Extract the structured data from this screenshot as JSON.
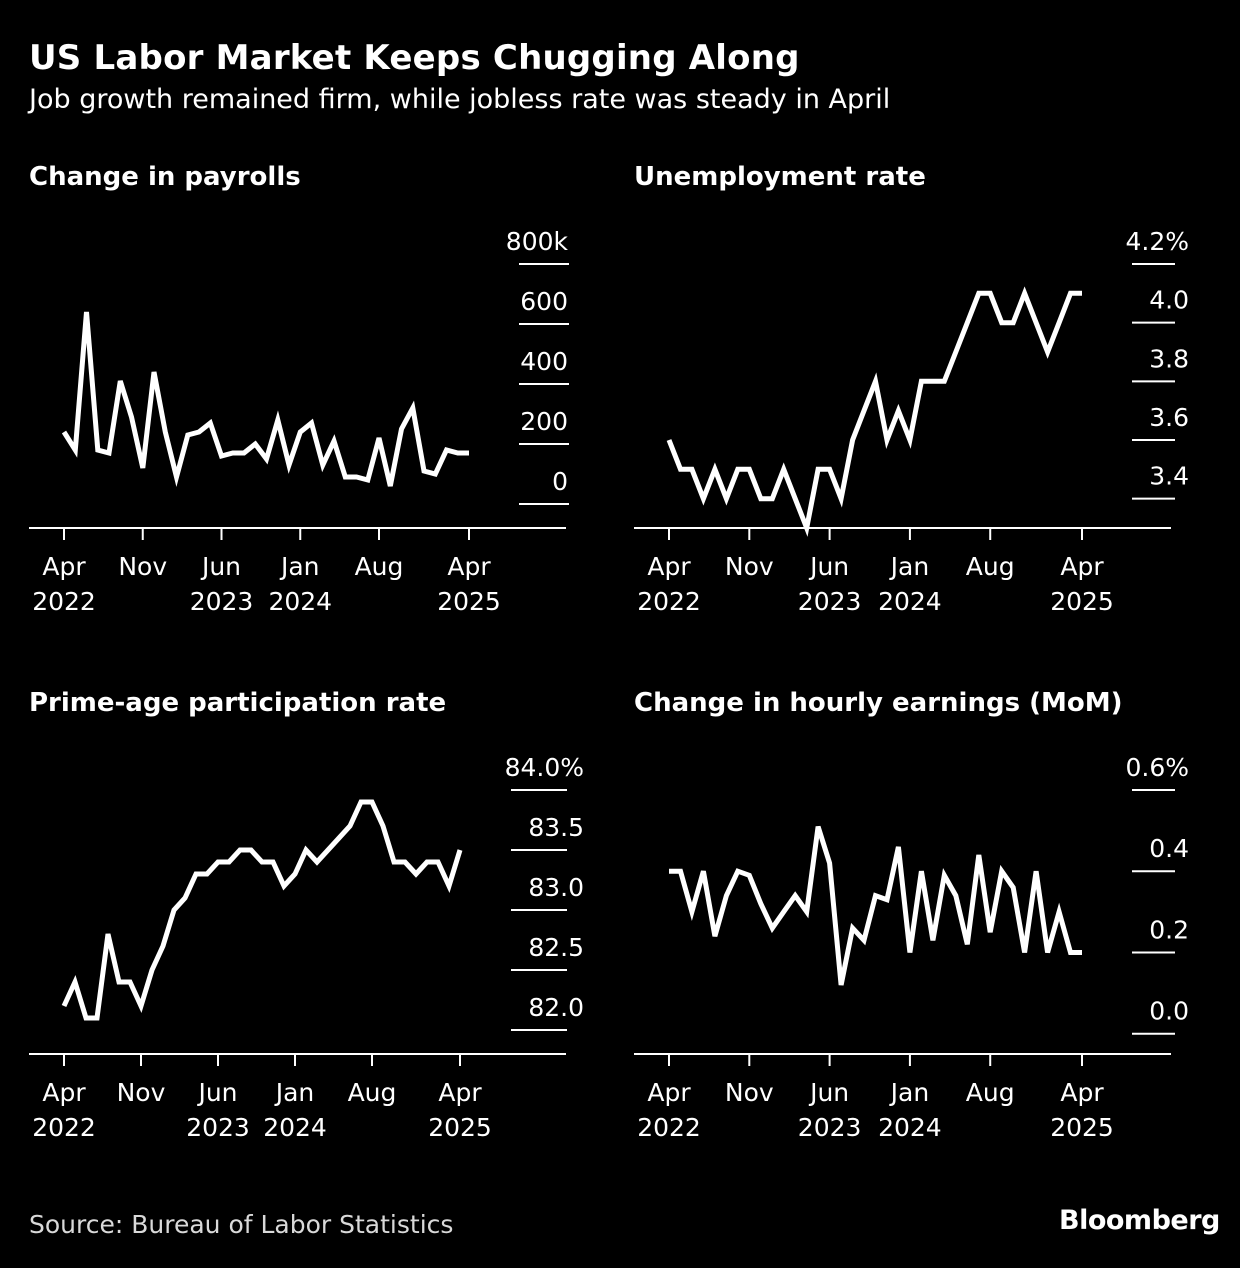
{
  "header": {
    "title": "US Labor Market Keeps Chugging Along",
    "subtitle": "Job growth remained firm, while jobless rate was steady in April"
  },
  "footer": {
    "source": "Source: Bureau of Labor Statistics",
    "brand": "Bloomberg"
  },
  "colors": {
    "background": "#000000",
    "line": "#ffffff",
    "grid": "#ffffff"
  },
  "chart_data": [
    {
      "type": "line",
      "title": "Change in payrolls",
      "x": [
        "2022-04",
        "2022-05",
        "2022-06",
        "2022-07",
        "2022-08",
        "2022-09",
        "2022-10",
        "2022-11",
        "2022-12",
        "2023-01",
        "2023-02",
        "2023-03",
        "2023-04",
        "2023-05",
        "2023-06",
        "2023-07",
        "2023-08",
        "2023-09",
        "2023-10",
        "2023-11",
        "2023-12",
        "2024-01",
        "2024-02",
        "2024-03",
        "2024-04",
        "2024-05",
        "2024-06",
        "2024-07",
        "2024-08",
        "2024-09",
        "2024-10",
        "2024-11",
        "2024-12",
        "2025-01",
        "2025-02",
        "2025-03",
        "2025-04"
      ],
      "values": [
        240,
        180,
        640,
        180,
        170,
        410,
        290,
        120,
        440,
        240,
        90,
        230,
        240,
        270,
        160,
        170,
        170,
        200,
        150,
        280,
        130,
        240,
        270,
        130,
        210,
        90,
        90,
        80,
        220,
        60,
        250,
        320,
        110,
        100,
        180,
        170,
        170
      ],
      "ylim": [
        -80,
        800
      ],
      "yticks": [
        800,
        600,
        400,
        200,
        0
      ],
      "ytick_labels": [
        "800k",
        "600",
        "400",
        "200",
        "0"
      ],
      "xtick_positions": [
        "2022-04",
        "2022-11",
        "2023-06",
        "2024-01",
        "2024-08",
        "2025-04"
      ],
      "xtick_labels": [
        [
          "Apr",
          "2022"
        ],
        [
          "Nov",
          ""
        ],
        [
          "Jun",
          "2023"
        ],
        [
          "Jan",
          "2024"
        ],
        [
          "Aug",
          ""
        ],
        [
          "Apr",
          "2025"
        ]
      ],
      "xlabel": "",
      "ylabel": ""
    },
    {
      "type": "line",
      "title": "Unemployment rate",
      "x": [
        "2022-04",
        "2022-05",
        "2022-06",
        "2022-07",
        "2022-08",
        "2022-09",
        "2022-10",
        "2022-11",
        "2022-12",
        "2023-01",
        "2023-02",
        "2023-03",
        "2023-04",
        "2023-05",
        "2023-06",
        "2023-07",
        "2023-08",
        "2023-09",
        "2023-10",
        "2023-11",
        "2023-12",
        "2024-01",
        "2024-02",
        "2024-03",
        "2024-04",
        "2024-05",
        "2024-06",
        "2024-07",
        "2024-08",
        "2024-09",
        "2024-10",
        "2024-11",
        "2024-12",
        "2025-01",
        "2025-02",
        "2025-03",
        "2025-04"
      ],
      "values": [
        3.6,
        3.5,
        3.5,
        3.4,
        3.5,
        3.4,
        3.5,
        3.5,
        3.4,
        3.4,
        3.5,
        3.4,
        3.3,
        3.5,
        3.5,
        3.4,
        3.6,
        3.7,
        3.8,
        3.6,
        3.7,
        3.6,
        3.8,
        3.8,
        3.8,
        3.9,
        4.0,
        4.1,
        4.1,
        4.0,
        4.0,
        4.1,
        4.0,
        3.9,
        4.0,
        4.1,
        4.1
      ],
      "ylim": [
        3.3,
        4.2
      ],
      "yticks": [
        4.2,
        4.0,
        3.8,
        3.6,
        3.4
      ],
      "ytick_labels": [
        "4.2%",
        "4.0",
        "3.8",
        "3.6",
        "3.4"
      ],
      "xtick_positions": [
        "2022-04",
        "2022-11",
        "2023-06",
        "2024-01",
        "2024-08",
        "2025-04"
      ],
      "xtick_labels": [
        [
          "Apr",
          "2022"
        ],
        [
          "Nov",
          ""
        ],
        [
          "Jun",
          "2023"
        ],
        [
          "Jan",
          "2024"
        ],
        [
          "Aug",
          ""
        ],
        [
          "Apr",
          "2025"
        ]
      ],
      "xlabel": "",
      "ylabel": ""
    },
    {
      "type": "line",
      "title": "Prime-age participation rate",
      "x": [
        "2022-04",
        "2022-05",
        "2022-06",
        "2022-07",
        "2022-08",
        "2022-09",
        "2022-10",
        "2022-11",
        "2022-12",
        "2023-01",
        "2023-02",
        "2023-03",
        "2023-04",
        "2023-05",
        "2023-06",
        "2023-07",
        "2023-08",
        "2023-09",
        "2023-10",
        "2023-11",
        "2023-12",
        "2024-01",
        "2024-02",
        "2024-03",
        "2024-04",
        "2024-05",
        "2024-06",
        "2024-07",
        "2024-08",
        "2024-09",
        "2024-10",
        "2024-11",
        "2024-12",
        "2025-01",
        "2025-02",
        "2025-03",
        "2025-04"
      ],
      "values": [
        82.2,
        82.4,
        82.1,
        82.1,
        82.8,
        82.4,
        82.4,
        82.2,
        82.5,
        82.7,
        83.0,
        83.1,
        83.3,
        83.3,
        83.4,
        83.4,
        83.5,
        83.5,
        83.4,
        83.4,
        83.2,
        83.3,
        83.5,
        83.4,
        83.5,
        83.6,
        83.7,
        83.9,
        83.9,
        83.7,
        83.4,
        83.4,
        83.3,
        83.4,
        83.4,
        83.2,
        83.5
      ],
      "ylim": [
        81.8,
        84.0
      ],
      "yticks": [
        84.0,
        83.5,
        83.0,
        82.5,
        82.0
      ],
      "ytick_labels": [
        "84.0%",
        "83.5",
        "83.0",
        "82.5",
        "82.0"
      ],
      "xtick_positions": [
        "2022-04",
        "2022-11",
        "2023-06",
        "2024-01",
        "2024-08",
        "2025-04"
      ],
      "xtick_labels": [
        [
          "Apr",
          "2022"
        ],
        [
          "Nov",
          ""
        ],
        [
          "Jun",
          "2023"
        ],
        [
          "Jan",
          "2024"
        ],
        [
          "Aug",
          ""
        ],
        [
          "Apr",
          "2025"
        ]
      ],
      "xlabel": "",
      "ylabel": ""
    },
    {
      "type": "line",
      "title": "Change in hourly earnings (MoM)",
      "x": [
        "2022-04",
        "2022-05",
        "2022-06",
        "2022-07",
        "2022-08",
        "2022-09",
        "2022-10",
        "2022-11",
        "2022-12",
        "2023-01",
        "2023-02",
        "2023-03",
        "2023-04",
        "2023-05",
        "2023-06",
        "2023-07",
        "2023-08",
        "2023-09",
        "2023-10",
        "2023-11",
        "2023-12",
        "2024-01",
        "2024-02",
        "2024-03",
        "2024-04",
        "2024-05",
        "2024-06",
        "2024-07",
        "2024-08",
        "2024-09",
        "2024-10",
        "2024-11",
        "2024-12",
        "2025-01",
        "2025-02",
        "2025-03",
        "2025-04"
      ],
      "values": [
        0.4,
        0.4,
        0.3,
        0.4,
        0.24,
        0.34,
        0.4,
        0.39,
        0.32,
        0.26,
        0.3,
        0.34,
        0.3,
        0.51,
        0.42,
        0.12,
        0.26,
        0.23,
        0.34,
        0.33,
        0.46,
        0.2,
        0.4,
        0.23,
        0.39,
        0.34,
        0.22,
        0.44,
        0.25,
        0.4,
        0.36,
        0.2,
        0.4,
        0.2,
        0.3,
        0.2,
        0.2
      ],
      "ylim": [
        -0.05,
        0.6
      ],
      "yticks": [
        0.6,
        0.4,
        0.2,
        0.0
      ],
      "ytick_labels": [
        "0.6%",
        "0.4",
        "0.2",
        "0.0"
      ],
      "xtick_positions": [
        "2022-04",
        "2022-11",
        "2023-06",
        "2024-01",
        "2024-08",
        "2025-04"
      ],
      "xtick_labels": [
        [
          "Apr",
          "2022"
        ],
        [
          "Nov",
          ""
        ],
        [
          "Jun",
          "2023"
        ],
        [
          "Jan",
          "2024"
        ],
        [
          "Aug",
          ""
        ],
        [
          "Apr",
          "2025"
        ]
      ],
      "xlabel": "",
      "ylabel": ""
    }
  ]
}
